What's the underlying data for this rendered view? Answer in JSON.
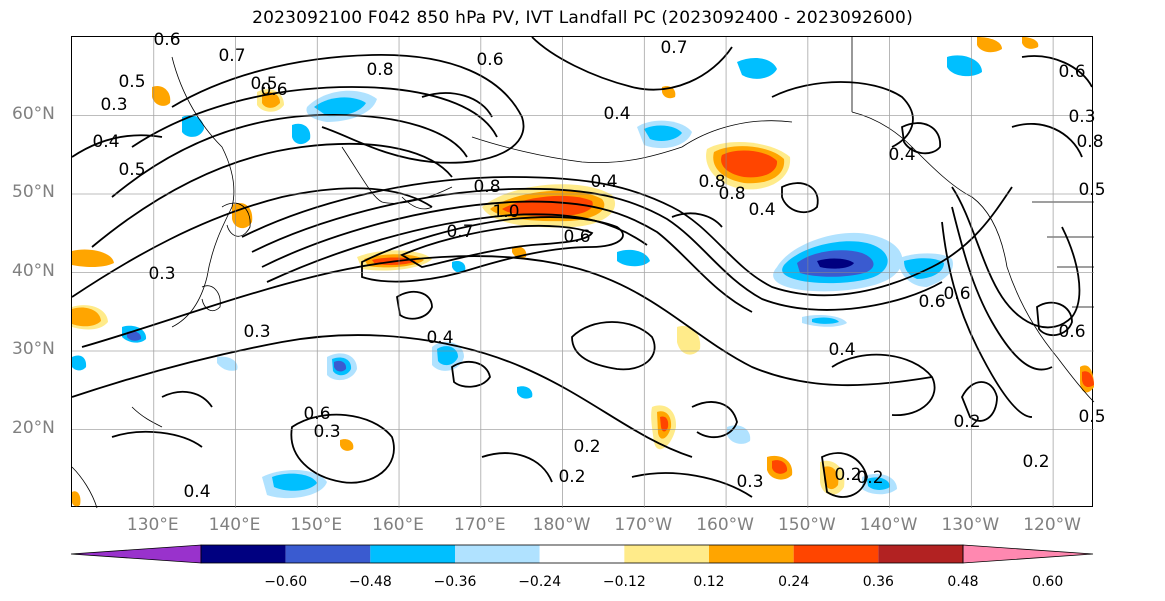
{
  "title": "2023092100 F042 850 hPa PV, IVT Landfall PC (2023092400 - 2023092600)",
  "lat_labels": [
    {
      "text": "60°N",
      "lat": 60
    },
    {
      "text": "50°N",
      "lat": 50
    },
    {
      "text": "40°N",
      "lat": 40
    },
    {
      "text": "30°N",
      "lat": 30
    },
    {
      "text": "20°N",
      "lat": 20
    }
  ],
  "lon_labels": [
    {
      "text": "130°E",
      "lon": 130
    },
    {
      "text": "140°E",
      "lon": 140
    },
    {
      "text": "150°E",
      "lon": 150
    },
    {
      "text": "160°E",
      "lon": 160
    },
    {
      "text": "170°E",
      "lon": 170
    },
    {
      "text": "180°W",
      "lon": 180
    },
    {
      "text": "170°W",
      "lon": 190
    },
    {
      "text": "160°W",
      "lon": 200
    },
    {
      "text": "150°W",
      "lon": 210
    },
    {
      "text": "140°W",
      "lon": 220
    },
    {
      "text": "130°W",
      "lon": 230
    },
    {
      "text": "120°W",
      "lon": 240
    }
  ],
  "extent": {
    "lon_min": 120,
    "lon_max": 245,
    "lat_min": 10,
    "lat_max": 70
  },
  "colorbar": {
    "colors": [
      "#9932cc",
      "#000080",
      "#3a5bd0",
      "#00bfff",
      "#b0e2ff",
      "#ffffff",
      "#ffeb8a",
      "#ffa500",
      "#ff4500",
      "#b22222",
      "#ff88b0"
    ],
    "ticks": [
      "−0.60",
      "−0.48",
      "−0.36",
      "−0.24",
      "−0.12",
      "0.12",
      "0.24",
      "0.36",
      "0.48",
      "0.60"
    ]
  },
  "contour_labels": [
    "0.6",
    "0.7",
    "0.8",
    "0.6",
    "0.7",
    "0.5",
    "0.6",
    "0.5",
    "0.3",
    "0.4",
    "0.5",
    "0.4",
    "0.8",
    "1.0",
    "0.7",
    "0.4",
    "0.6",
    "0.8",
    "0.8",
    "0.4",
    "0.3",
    "0.3",
    "0.4",
    "0.6",
    "0.3",
    "0.4",
    "0.2",
    "0.2",
    "0.3",
    "0.2",
    "0.2",
    "0.6",
    "0.2",
    "0.6",
    "0.3",
    "0.6",
    "0.5",
    "0.8",
    "0.4",
    "0.4",
    "0.6",
    "0.5",
    "0.2"
  ],
  "fill_colors": {
    "neg_light": "#b0e2ff",
    "neg_mid": "#00bfff",
    "neg_strong": "#3a5bd0",
    "pos_light": "#ffeb8a",
    "pos_mid": "#ffa500",
    "pos_strong": "#ff4500"
  }
}
